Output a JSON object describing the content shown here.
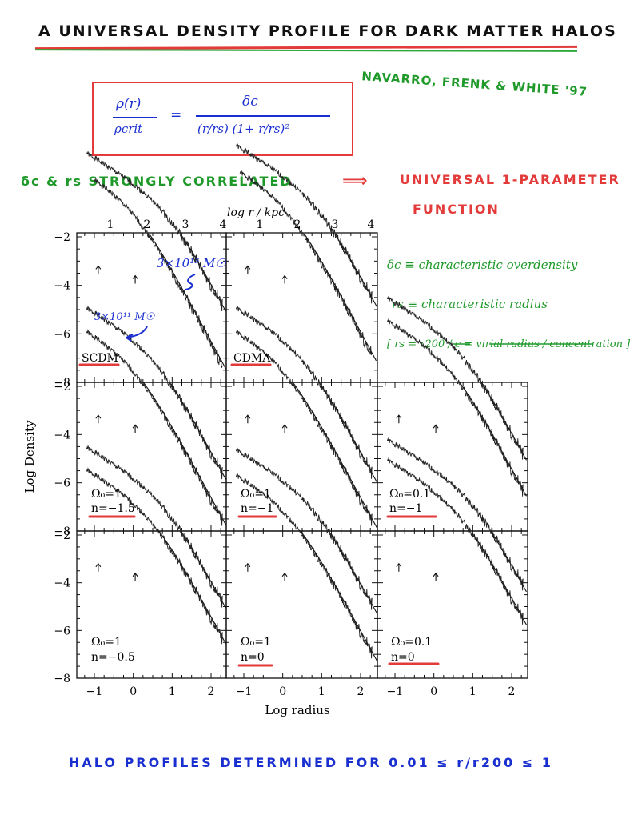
{
  "title": "A UNIVERSAL DENSITY PROFILE FOR DARK MATTER HALOS",
  "citation": "NAVARRO, FRENK & WHITE '97",
  "formula": {
    "lhs_num": "ρ(r)",
    "lhs_den": "ρcrit",
    "equals": "=",
    "rhs_num": "δc",
    "rhs_den": "(r/rs) (1+ r/rs)²"
  },
  "correlation_note": {
    "text": "δc & rs STRONGLY CORRELATED",
    "arrow": "⟹",
    "result_line1": "UNIVERSAL 1-PARAMETER",
    "result_line2": "FUNCTION"
  },
  "definitions": {
    "delta_c": "δc ≡ characteristic overdensity",
    "r_s": "rs ≡ characteristic radius",
    "rs_relation": "[ rs = r200 / c = virial radius / concentration ]"
  },
  "mass_annotations": {
    "high": "3×10¹⁵ M☉",
    "low": "3×10¹¹ M☉"
  },
  "axes": {
    "top_xlabel": "log r / kpc",
    "top_ticks": [
      "1",
      "2",
      "3",
      "4"
    ],
    "bottom_xlabel": "Log radius",
    "bottom_ticks": [
      "-1",
      "0",
      "1",
      "2"
    ],
    "ylabel": "Log Density",
    "yticks": [
      "-2",
      "-4",
      "-6",
      "-8"
    ]
  },
  "panel_labels": {
    "scdm": "SCDM",
    "cdml": "CDMΛ",
    "p10_l1": "Ω₀=1",
    "p10_l2": "n=−1.5",
    "p11_l1": "Ω₀=1",
    "p11_l2": "n=−1",
    "p12_l1": "Ω₀=0.1",
    "p12_l2": "n=−1",
    "p20_l1": "Ω₀=1",
    "p20_l2": "n=−0.5",
    "p21_l1": "Ω₀=1",
    "p21_l2": "n=0",
    "p22_l1": "Ω₀=0.1",
    "p22_l2": "n=0"
  },
  "bottom_note": "HALO PROFILES DETERMINED FOR 0.01 ≤ r/r200 ≤ 1",
  "colors": {
    "red": "#e33a3a",
    "green": "#1f9a2a",
    "blue": "#1a2fd0",
    "ink": "#111111"
  }
}
